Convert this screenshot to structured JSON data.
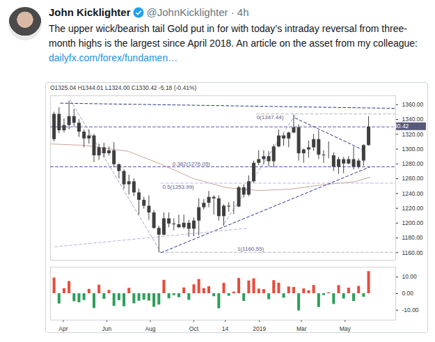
{
  "tweet": {
    "name": "John Kicklighter",
    "handle_line": "@JohnKicklighter · 4h",
    "text": "The upper wick/bearish tail Gold put in for with today’s intraday reversal from three-month highs is the largest since April 2018. An article on the asset from my colleague:",
    "link": "dailyfx.com/forex/fundamen…"
  },
  "chart_data": [
    {
      "type": "candlestick",
      "title": "O1325.04 H1344.01 L1324.00 C1330.42 -5.18 (-0.41%)",
      "x": [
        "2018-03-19",
        "2018-03-26",
        "2018-04-02",
        "2018-04-09",
        "2018-04-16",
        "2018-04-23",
        "2018-04-30",
        "2018-05-07",
        "2018-05-14",
        "2018-05-21",
        "2018-05-28",
        "2018-06-04",
        "2018-06-11",
        "2018-06-18",
        "2018-06-25",
        "2018-07-02",
        "2018-07-09",
        "2018-07-16",
        "2018-07-23",
        "2018-07-30",
        "2018-08-06",
        "2018-08-13",
        "2018-08-20",
        "2018-08-27",
        "2018-09-03",
        "2018-09-10",
        "2018-09-17",
        "2018-09-24",
        "2018-10-01",
        "2018-10-08",
        "2018-10-15",
        "2018-10-22",
        "2018-10-29",
        "2018-11-05",
        "2018-11-12",
        "2018-11-19",
        "2018-11-26",
        "2018-12-03",
        "2018-12-10",
        "2018-12-17",
        "2018-12-24",
        "2018-12-31",
        "2019-01-07",
        "2019-01-14",
        "2019-01-21",
        "2019-01-28",
        "2019-02-04",
        "2019-02-11",
        "2019-02-18",
        "2019-02-25",
        "2019-03-04",
        "2019-03-11",
        "2019-03-18",
        "2019-03-25",
        "2019-04-01",
        "2019-04-08",
        "2019-04-15",
        "2019-04-22",
        "2019-04-29",
        "2019-05-06",
        "2019-05-13",
        "2019-05-20",
        "2019-05-27",
        "2019-06-03"
      ],
      "open": [
        1313,
        1347,
        1325,
        1332,
        1344,
        1335,
        1323,
        1314,
        1318,
        1291,
        1302,
        1294,
        1298,
        1279,
        1270,
        1252,
        1256,
        1241,
        1231,
        1223,
        1214,
        1193,
        1184,
        1206,
        1199,
        1198,
        1194,
        1200,
        1192,
        1203,
        1221,
        1227,
        1235,
        1233,
        1209,
        1223,
        1222,
        1222,
        1248,
        1238,
        1256,
        1281,
        1286,
        1290,
        1283,
        1303,
        1318,
        1314,
        1322,
        1329,
        1294,
        1299,
        1302,
        1313,
        1292,
        1291,
        1291,
        1276,
        1286,
        1280,
        1286,
        1276,
        1284,
        1305
      ],
      "high": [
        1350,
        1356,
        1341,
        1365,
        1354,
        1340,
        1326,
        1326,
        1320,
        1307,
        1308,
        1303,
        1309,
        1280,
        1272,
        1265,
        1260,
        1246,
        1235,
        1237,
        1217,
        1196,
        1214,
        1214,
        1206,
        1211,
        1211,
        1204,
        1207,
        1233,
        1232,
        1243,
        1237,
        1237,
        1225,
        1228,
        1229,
        1250,
        1252,
        1264,
        1284,
        1298,
        1298,
        1297,
        1306,
        1326,
        1321,
        1323,
        1346,
        1333,
        1300,
        1311,
        1320,
        1325,
        1298,
        1310,
        1295,
        1289,
        1289,
        1290,
        1303,
        1287,
        1306,
        1344
      ],
      "low": [
        1310,
        1321,
        1322,
        1326,
        1330,
        1316,
        1302,
        1307,
        1282,
        1285,
        1288,
        1291,
        1275,
        1260,
        1246,
        1238,
        1236,
        1211,
        1219,
        1204,
        1192,
        1160,
        1183,
        1194,
        1190,
        1193,
        1192,
        1181,
        1182,
        1183,
        1218,
        1221,
        1211,
        1203,
        1196,
        1215,
        1212,
        1221,
        1234,
        1236,
        1254,
        1278,
        1279,
        1276,
        1275,
        1302,
        1304,
        1302,
        1321,
        1284,
        1281,
        1288,
        1297,
        1286,
        1281,
        1287,
        1270,
        1266,
        1267,
        1279,
        1272,
        1273,
        1277,
        1304
      ],
      "close": [
        1347,
        1325,
        1332,
        1344,
        1335,
        1323,
        1314,
        1318,
        1291,
        1302,
        1294,
        1298,
        1279,
        1270,
        1252,
        1256,
        1241,
        1231,
        1223,
        1214,
        1193,
        1184,
        1206,
        1199,
        1198,
        1194,
        1200,
        1192,
        1203,
        1221,
        1227,
        1235,
        1233,
        1209,
        1223,
        1222,
        1222,
        1248,
        1238,
        1256,
        1281,
        1286,
        1290,
        1283,
        1303,
        1318,
        1314,
        1322,
        1329,
        1294,
        1299,
        1302,
        1313,
        1292,
        1291,
        1291,
        1276,
        1286,
        1280,
        1286,
        1276,
        1284,
        1305,
        1330
      ],
      "color": "#3f3f3f",
      "xlim": [
        "2018-03-14",
        "2019-07-11"
      ],
      "ylim": [
        1150,
        1372
      ],
      "yticks": [
        {
          "value": 1160,
          "label": "1160.00"
        },
        {
          "value": 1180,
          "label": "1180.00"
        },
        {
          "value": 1200,
          "label": "1200.00"
        },
        {
          "value": 1220,
          "label": "1220.00"
        },
        {
          "value": 1240,
          "label": "1240.00"
        },
        {
          "value": 1260,
          "label": "1260.00"
        },
        {
          "value": 1280,
          "label": "1280.00"
        },
        {
          "value": 1300,
          "label": "1300.00"
        },
        {
          "value": 1320,
          "label": "1320.00"
        },
        {
          "value": 1340,
          "label": "1340.00"
        },
        {
          "value": 1360,
          "label": "1360.00"
        }
      ],
      "tick_labels": "y",
      "last_price": 1330.42,
      "series": [
        {
          "type": "line",
          "color": "#c9a39b",
          "line_style": "solid",
          "x": [
            "2018-03-14",
            "2018-05-01",
            "2018-07-01",
            "2018-08-15",
            "2018-10-01",
            "2018-11-15",
            "2019-01-01",
            "2019-02-15",
            "2019-04-01",
            "2019-05-15",
            "2019-06-05"
          ],
          "values": [
            1307,
            1305,
            1297,
            1280,
            1260,
            1248,
            1244,
            1246,
            1252,
            1256,
            1262
          ]
        },
        {
          "type": "line",
          "color": "#27348b",
          "line_style": "dashed",
          "x": [
            "2018-03-28",
            "2019-07-11"
          ],
          "values": [
            1362,
            1355
          ]
        },
        {
          "type": "line",
          "color": "#5a4fb0",
          "line_style": "dashed",
          "x": [
            "2018-03-14",
            "2019-07-11"
          ],
          "values": [
            1330,
            1330
          ]
        },
        {
          "type": "line",
          "color": "#b5b5b5",
          "line_style": "dashed",
          "x": [
            "2018-12-28",
            "2019-07-11"
          ],
          "values": [
            1347.44,
            1347.44
          ]
        },
        {
          "type": "line",
          "color": "#5a4fb0",
          "line_style": "dashed",
          "x": [
            "2018-03-14",
            "2019-07-11"
          ],
          "values": [
            1276.05,
            1276.05
          ]
        },
        {
          "type": "line",
          "color": "#bdb3e6",
          "line_style": "dashed",
          "x": [
            "2018-08-16",
            "2019-07-11"
          ],
          "values": [
            1253.99,
            1253.99
          ]
        },
        {
          "type": "line",
          "color": "#b5b5b5",
          "line_style": "dashed",
          "x": [
            "2018-08-16",
            "2019-07-11"
          ],
          "values": [
            1160.55,
            1160.55
          ]
        },
        {
          "type": "line",
          "color": "#9aa6d6",
          "line_style": "dashed",
          "x": [
            "2018-04-11",
            "2018-08-16"
          ],
          "values": [
            1366,
            1160
          ]
        },
        {
          "type": "line",
          "color": "#27348b",
          "line_style": "dashed",
          "x": [
            "2018-08-16",
            "2019-06-05"
          ],
          "values": [
            1160,
            1276
          ]
        },
        {
          "type": "line",
          "color": "#b8b0e0",
          "line_style": "dashed",
          "x": [
            "2018-03-20",
            "2018-12-14"
          ],
          "values": [
            1168,
            1193
          ]
        },
        {
          "type": "line",
          "color": "#9aa6d6",
          "line_style": "dashed",
          "x": [
            "2018-11-13",
            "2019-02-20"
          ],
          "values": [
            1200,
            1346
          ]
        },
        {
          "type": "line",
          "color": "#27348b",
          "line_style": "dashed",
          "x": [
            "2019-02-20",
            "2019-05-24"
          ],
          "values": [
            1342,
            1300
          ]
        }
      ],
      "annotations": [
        {
          "text": "0(1347.44)",
          "x": "2018-12-28",
          "y": 1347.44
        },
        {
          "text": "0.382(1276.05)",
          "x": "2018-09-01",
          "y": 1276.05
        },
        {
          "text": "0.5(1253.99)",
          "x": "2018-08-18",
          "y": 1253.99
        },
        {
          "text": "1(1160.55)",
          "x": "2018-12-01",
          "y": 1160.55
        }
      ]
    },
    {
      "type": "bar",
      "x": [
        "2018-03-19",
        "2018-03-26",
        "2018-04-02",
        "2018-04-09",
        "2018-04-16",
        "2018-04-23",
        "2018-04-30",
        "2018-05-07",
        "2018-05-14",
        "2018-05-21",
        "2018-05-28",
        "2018-06-04",
        "2018-06-11",
        "2018-06-18",
        "2018-06-25",
        "2018-07-02",
        "2018-07-09",
        "2018-07-16",
        "2018-07-23",
        "2018-07-30",
        "2018-08-06",
        "2018-08-13",
        "2018-08-20",
        "2018-08-27",
        "2018-09-03",
        "2018-09-10",
        "2018-09-17",
        "2018-09-24",
        "2018-10-01",
        "2018-10-08",
        "2018-10-15",
        "2018-10-22",
        "2018-10-29",
        "2018-11-05",
        "2018-11-12",
        "2018-11-19",
        "2018-11-26",
        "2018-12-03",
        "2018-12-10",
        "2018-12-17",
        "2018-12-24",
        "2018-12-31",
        "2019-01-07",
        "2019-01-14",
        "2019-01-21",
        "2019-01-28",
        "2019-02-04",
        "2019-02-11",
        "2019-02-18",
        "2019-02-25",
        "2019-03-04",
        "2019-03-11",
        "2019-03-18",
        "2019-03-25",
        "2019-04-01",
        "2019-04-08",
        "2019-04-15",
        "2019-04-22",
        "2019-04-29",
        "2019-05-06",
        "2019-05-13",
        "2019-05-20",
        "2019-05-27",
        "2019-06-03"
      ],
      "values": [
        9.5,
        -6.2,
        3.1,
        7.4,
        -4.8,
        -5.5,
        -4.1,
        2.6,
        -8.9,
        5.2,
        -3.4,
        2.0,
        -7.6,
        -4.2,
        -7.9,
        3.3,
        -6.1,
        -4.5,
        -3.9,
        -4.4,
        -8.2,
        -6.8,
        8.1,
        -3.0,
        -1.2,
        -2.4,
        3.5,
        -4.0,
        5.4,
        8.6,
        3.1,
        4.2,
        -1.8,
        -9.1,
        6.3,
        -1.5,
        1.0,
        9.2,
        -4.6,
        7.7,
        9.0,
        2.8,
        2.5,
        -3.6,
        7.9,
        6.4,
        -2.7,
        4.1,
        3.8,
        -10.4,
        2.9,
        1.8,
        5.0,
        -8.3,
        -1.1,
        0.6,
        -6.5,
        4.9,
        -3.2,
        3.4,
        -4.7,
        4.4,
        -2.1,
        13.4
      ],
      "colors": [
        "#e74c3c",
        "#2e9e5b",
        "#e74c3c",
        "#e74c3c",
        "#2e9e5b",
        "#2e9e5b",
        "#2e9e5b",
        "#e74c3c",
        "#2e9e5b",
        "#e74c3c",
        "#2e9e5b",
        "#e74c3c",
        "#2e9e5b",
        "#2e9e5b",
        "#2e9e5b",
        "#e74c3c",
        "#2e9e5b",
        "#2e9e5b",
        "#2e9e5b",
        "#2e9e5b",
        "#2e9e5b",
        "#2e9e5b",
        "#e74c3c",
        "#2e9e5b",
        "#2e9e5b",
        "#2e9e5b",
        "#e74c3c",
        "#2e9e5b",
        "#e74c3c",
        "#e74c3c",
        "#e74c3c",
        "#e74c3c",
        "#2e9e5b",
        "#2e9e5b",
        "#e74c3c",
        "#2e9e5b",
        "#e74c3c",
        "#e74c3c",
        "#2e9e5b",
        "#e74c3c",
        "#e74c3c",
        "#e74c3c",
        "#e74c3c",
        "#2e9e5b",
        "#e74c3c",
        "#e74c3c",
        "#2e9e5b",
        "#e74c3c",
        "#e74c3c",
        "#2e9e5b",
        "#e74c3c",
        "#e74c3c",
        "#e74c3c",
        "#2e9e5b",
        "#2e9e5b",
        "#e74c3c",
        "#2e9e5b",
        "#e74c3c",
        "#2e9e5b",
        "#e74c3c",
        "#2e9e5b",
        "#e74c3c",
        "#2e9e5b",
        "#e74c3c"
      ],
      "xlim": [
        "2018-03-14",
        "2019-07-11"
      ],
      "xticks": [
        {
          "value": "2018-04-01",
          "label": "Apr"
        },
        {
          "value": "2018-06-01",
          "label": "Jun"
        },
        {
          "value": "2018-08-01",
          "label": "Aug"
        },
        {
          "value": "2018-10-01",
          "label": "Oct"
        },
        {
          "value": "2018-11-14",
          "label": "14"
        },
        {
          "value": "2019-01-01",
          "label": "2019"
        },
        {
          "value": "2019-03-01",
          "label": "Mar"
        },
        {
          "value": "2019-05-01",
          "label": "May"
        }
      ],
      "ylim": [
        -16,
        16
      ],
      "yticks": [
        {
          "value": 10,
          "label": "10.00"
        },
        {
          "value": 0,
          "label": "0.00"
        },
        {
          "value": -10,
          "label": "-10.00"
        }
      ]
    }
  ]
}
